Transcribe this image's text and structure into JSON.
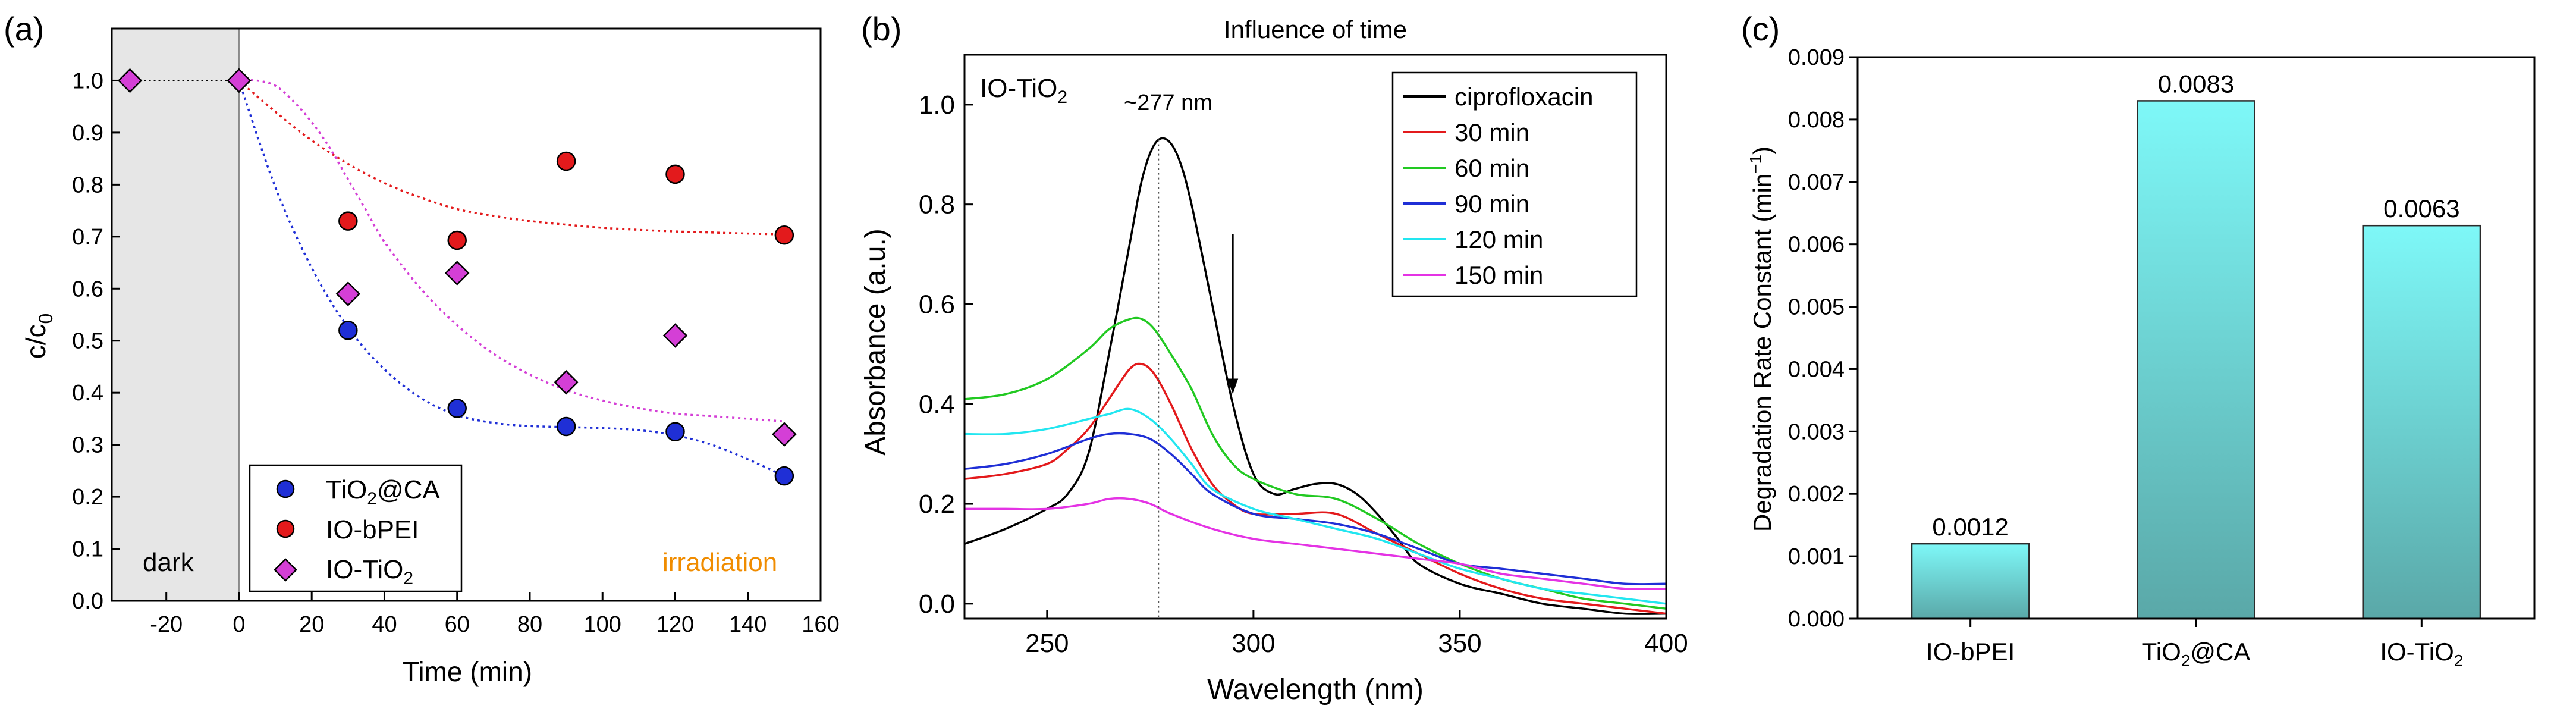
{
  "chart_data": [
    {
      "panel_label": "(a)",
      "type": "scatter",
      "title": "",
      "xlabel": "Time (min)",
      "ylabel": "c/c",
      "ylabel_sub": "0",
      "xlim": [
        -35,
        160
      ],
      "ylim": [
        0,
        1.1
      ],
      "xticks": [
        -20,
        0,
        20,
        40,
        60,
        80,
        100,
        120,
        140,
        160
      ],
      "xtick_labels": [
        "-20",
        "0",
        "20",
        "40",
        "60",
        "80",
        "100",
        "120",
        "140",
        "160"
      ],
      "yticks": [
        0.0,
        0.1,
        0.2,
        0.3,
        0.4,
        0.5,
        0.6,
        0.7,
        0.8,
        0.9,
        1.0
      ],
      "ytick_labels": [
        "0.0",
        "0.1",
        "0.2",
        "0.3",
        "0.4",
        "0.5",
        "0.6",
        "0.7",
        "0.8",
        "0.9",
        "1.0"
      ],
      "dark_region": [
        -35,
        0
      ],
      "annotations": {
        "dark": "dark",
        "irradiation": "irradiation"
      },
      "legend_position": "bottom-left",
      "series": [
        {
          "name": "TiO2@CA",
          "label_main": "TiO",
          "label_sub": "2",
          "label_tail": "@CA",
          "color": "#1f2fd6",
          "marker": "circle",
          "x": [
            30,
            60,
            90,
            120,
            150
          ],
          "y": [
            0.52,
            0.37,
            0.335,
            0.325,
            0.24
          ],
          "fit_x": [
            0,
            10,
            20,
            30,
            40,
            50,
            60,
            70,
            80,
            90,
            100,
            110,
            120,
            130,
            140,
            150
          ],
          "fit_y": [
            1.0,
            0.795,
            0.64,
            0.525,
            0.445,
            0.39,
            0.357,
            0.342,
            0.336,
            0.334,
            0.332,
            0.328,
            0.318,
            0.3,
            0.272,
            0.24
          ]
        },
        {
          "name": "IO-bPEI",
          "label_main": "IO-bPEI",
          "label_sub": "",
          "label_tail": "",
          "color": "#e31a1c",
          "marker": "circle",
          "x": [
            30,
            60,
            90,
            120,
            150
          ],
          "y": [
            0.73,
            0.693,
            0.845,
            0.82,
            0.703
          ],
          "fit_x": [
            0,
            10,
            20,
            30,
            40,
            50,
            60,
            70,
            80,
            90,
            100,
            110,
            120,
            130,
            140,
            150
          ],
          "fit_y": [
            1.0,
            0.94,
            0.885,
            0.84,
            0.803,
            0.775,
            0.753,
            0.74,
            0.73,
            0.723,
            0.717,
            0.713,
            0.71,
            0.708,
            0.706,
            0.704
          ]
        },
        {
          "name": "IO-TiO2",
          "label_main": "IO-TiO",
          "label_sub": "2",
          "label_tail": "",
          "color": "#d43fd6",
          "marker": "diamond",
          "x": [
            30,
            60,
            90,
            120,
            150
          ],
          "y": [
            0.59,
            0.63,
            0.42,
            0.51,
            0.32
          ],
          "fit_x": [
            0,
            5,
            10,
            15,
            20,
            25,
            30,
            35,
            40,
            50,
            60,
            70,
            80,
            90,
            100,
            110,
            120,
            130,
            140,
            150
          ],
          "fit_y": [
            1.0,
            1.0,
            0.99,
            0.96,
            0.92,
            0.87,
            0.81,
            0.75,
            0.69,
            0.6,
            0.53,
            0.475,
            0.435,
            0.405,
            0.385,
            0.37,
            0.36,
            0.355,
            0.35,
            0.345
          ]
        },
        {
          "name": "dark",
          "color": "#d43fd6",
          "marker": "diamond",
          "x": [
            -30,
            0
          ],
          "y": [
            1.0,
            1.0
          ],
          "dotted_color": "#000000"
        }
      ]
    },
    {
      "panel_label": "(b)",
      "type": "line",
      "title": "Influence of time",
      "xlabel": "Wavelength (nm)",
      "ylabel": "Absorbance (a.u.)",
      "xlim": [
        230,
        400
      ],
      "ylim": [
        -0.03,
        1.1
      ],
      "xticks": [
        250,
        300,
        350,
        400
      ],
      "xtick_labels": [
        "250",
        "300",
        "350",
        "400"
      ],
      "yticks": [
        0.0,
        0.2,
        0.4,
        0.6,
        0.8,
        1.0
      ],
      "ytick_labels": [
        "0.0",
        "0.2",
        "0.4",
        "0.6",
        "0.8",
        "1.0"
      ],
      "inset_label": "IO-TiO",
      "inset_label_sub": "2",
      "peak_label": "~277 nm",
      "peak_x": 277,
      "arrow": {
        "x": 295,
        "y_from": 0.74,
        "y_to": 0.42
      },
      "legend_position": "top-right",
      "series": [
        {
          "name": "ciprofloxacin",
          "color": "#000000",
          "x": [
            230,
            240,
            250,
            255,
            260,
            265,
            270,
            273,
            276,
            279,
            282,
            285,
            290,
            295,
            300,
            305,
            310,
            315,
            320,
            325,
            330,
            335,
            340,
            350,
            360,
            370,
            380,
            390,
            400
          ],
          "y": [
            0.12,
            0.15,
            0.19,
            0.22,
            0.3,
            0.5,
            0.72,
            0.85,
            0.92,
            0.93,
            0.89,
            0.8,
            0.6,
            0.4,
            0.26,
            0.22,
            0.23,
            0.24,
            0.24,
            0.22,
            0.18,
            0.13,
            0.08,
            0.04,
            0.02,
            0.0,
            -0.01,
            -0.02,
            -0.02
          ]
        },
        {
          "name": "30 min",
          "color": "#e31a1c",
          "x": [
            230,
            240,
            250,
            255,
            260,
            265,
            270,
            273,
            276,
            280,
            285,
            290,
            295,
            300,
            310,
            320,
            330,
            340,
            350,
            360,
            370,
            380,
            390,
            400
          ],
          "y": [
            0.25,
            0.26,
            0.28,
            0.31,
            0.35,
            0.41,
            0.47,
            0.48,
            0.46,
            0.4,
            0.31,
            0.24,
            0.2,
            0.18,
            0.18,
            0.18,
            0.14,
            0.1,
            0.06,
            0.03,
            0.01,
            0.0,
            -0.01,
            -0.02
          ]
        },
        {
          "name": "60 min",
          "color": "#22c922",
          "x": [
            230,
            240,
            250,
            260,
            265,
            270,
            273,
            276,
            280,
            285,
            290,
            295,
            300,
            310,
            320,
            330,
            340,
            350,
            360,
            370,
            380,
            390,
            400
          ],
          "y": [
            0.41,
            0.42,
            0.45,
            0.51,
            0.55,
            0.57,
            0.57,
            0.55,
            0.5,
            0.43,
            0.34,
            0.28,
            0.25,
            0.22,
            0.21,
            0.17,
            0.12,
            0.08,
            0.05,
            0.03,
            0.01,
            0.0,
            -0.01
          ]
        },
        {
          "name": "90 min",
          "color": "#1f2fd6",
          "x": [
            230,
            240,
            250,
            260,
            265,
            270,
            275,
            280,
            285,
            290,
            300,
            310,
            320,
            330,
            340,
            350,
            360,
            370,
            380,
            390,
            400
          ],
          "y": [
            0.27,
            0.28,
            0.3,
            0.33,
            0.34,
            0.34,
            0.33,
            0.3,
            0.26,
            0.22,
            0.18,
            0.17,
            0.16,
            0.14,
            0.11,
            0.08,
            0.07,
            0.06,
            0.05,
            0.04,
            0.04
          ]
        },
        {
          "name": "120 min",
          "color": "#22e6f0",
          "x": [
            230,
            240,
            250,
            260,
            265,
            270,
            275,
            280,
            285,
            290,
            300,
            310,
            320,
            330,
            340,
            350,
            360,
            370,
            380,
            390,
            400
          ],
          "y": [
            0.34,
            0.34,
            0.35,
            0.37,
            0.38,
            0.39,
            0.37,
            0.33,
            0.28,
            0.23,
            0.19,
            0.17,
            0.15,
            0.13,
            0.1,
            0.07,
            0.05,
            0.03,
            0.02,
            0.01,
            0.0
          ]
        },
        {
          "name": "150 min",
          "color": "#e433e4",
          "x": [
            230,
            240,
            250,
            260,
            265,
            270,
            275,
            280,
            290,
            300,
            310,
            320,
            330,
            340,
            350,
            360,
            370,
            380,
            390,
            400
          ],
          "y": [
            0.19,
            0.19,
            0.19,
            0.2,
            0.21,
            0.21,
            0.2,
            0.18,
            0.15,
            0.13,
            0.12,
            0.11,
            0.1,
            0.09,
            0.08,
            0.06,
            0.05,
            0.04,
            0.03,
            0.03
          ]
        }
      ]
    },
    {
      "panel_label": "(c)",
      "type": "bar",
      "title": "",
      "xlabel": "",
      "ylabel": "Degradation Rate Constant (min",
      "ylabel_sup": "−1",
      "ylabel_tail": ")",
      "ylim": [
        0,
        0.009
      ],
      "yticks": [
        0,
        0.001,
        0.002,
        0.003,
        0.004,
        0.005,
        0.006,
        0.007,
        0.008,
        0.009
      ],
      "ytick_labels": [
        "0.000",
        "0.001",
        "0.002",
        "0.003",
        "0.004",
        "0.005",
        "0.006",
        "0.007",
        "0.008",
        "0.009"
      ],
      "categories": [
        "IO-bPEI",
        "TiO2@CA",
        "IO-TiO2"
      ],
      "category_labels": [
        {
          "main": "IO-bPEI",
          "sub": "",
          "tail": ""
        },
        {
          "main": "TiO",
          "sub": "2",
          "tail": "@CA"
        },
        {
          "main": "IO-TiO",
          "sub": "2",
          "tail": ""
        }
      ],
      "values": [
        0.0012,
        0.0083,
        0.0063
      ],
      "value_labels": [
        "0.0012",
        "0.0083",
        "0.0063"
      ],
      "bar_color_top": "#7ef8f8",
      "bar_color_bottom": "#5aa8a8"
    }
  ]
}
